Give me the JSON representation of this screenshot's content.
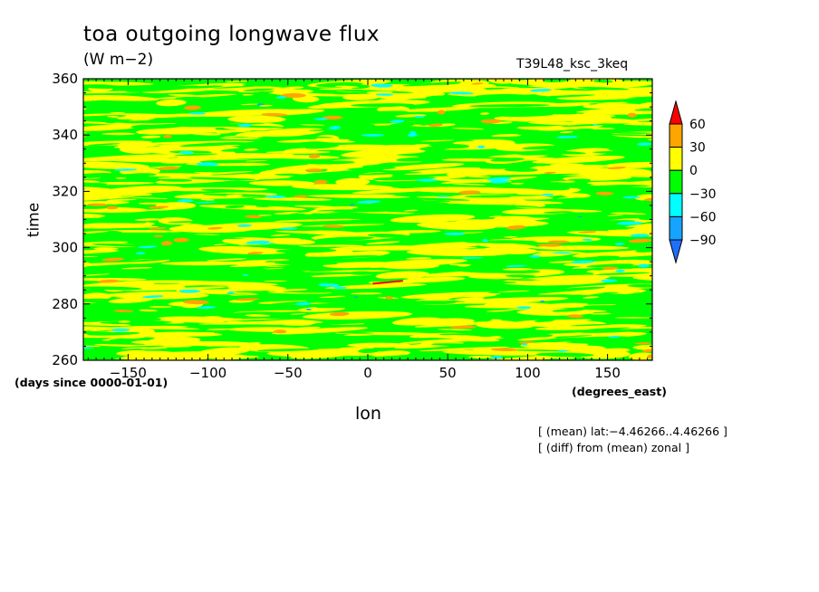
{
  "chart_data": {
    "type": "heatmap",
    "title": "toa outgoing longwave flux",
    "subtitle": "(W m−2)",
    "run_label": "T39L48_ksc_3keq",
    "xlabel": "lon",
    "ylabel": "time",
    "x_units": "(degrees_east)",
    "y_units": "(days since 0000-01-01)",
    "xlim": [
      -178,
      178
    ],
    "ylim": [
      260,
      360
    ],
    "x_ticks": [
      -150,
      -100,
      -50,
      0,
      50,
      100,
      150
    ],
    "x_tick_labels": [
      "−150",
      "−100",
      "−50",
      "0",
      "50",
      "100",
      "150"
    ],
    "y_ticks": [
      260,
      280,
      300,
      320,
      340,
      360
    ],
    "y_tick_labels": [
      "260",
      "280",
      "300",
      "320",
      "340",
      "360"
    ],
    "colorbar": {
      "levels": [
        -90,
        -60,
        -30,
        0,
        30,
        60
      ],
      "level_labels": [
        "−90",
        "−60",
        "−30",
        "0",
        "30",
        "60"
      ],
      "colors": [
        "#1f6fff",
        "#15a4ff",
        "#00ffff",
        "#00ff00",
        "#ffff00",
        "#ffa500",
        "#ff0000"
      ]
    },
    "annotations": [
      "[ (mean) lat:−4.46266..4.46266 ]",
      "[ (diff) from (mean) zonal ]"
    ]
  }
}
